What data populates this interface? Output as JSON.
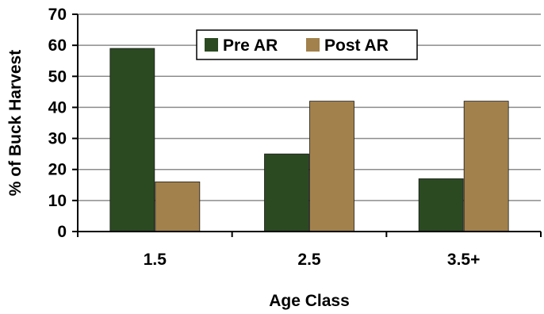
{
  "chart_data": {
    "type": "bar",
    "categories": [
      "1.5",
      "2.5",
      "3.5+"
    ],
    "series": [
      {
        "name": "Pre AR",
        "values": [
          59,
          25,
          17
        ],
        "color": "#2b4a22"
      },
      {
        "name": "Post AR",
        "values": [
          16,
          42,
          42
        ],
        "color": "#a2814c"
      }
    ],
    "xlabel": "Age Class",
    "ylabel": "% of Buck Harvest",
    "ylim": [
      0,
      70
    ],
    "yticks": [
      "0",
      "10",
      "20",
      "30",
      "40",
      "50",
      "60",
      "70"
    ],
    "grid": true,
    "legend": "top-center"
  }
}
